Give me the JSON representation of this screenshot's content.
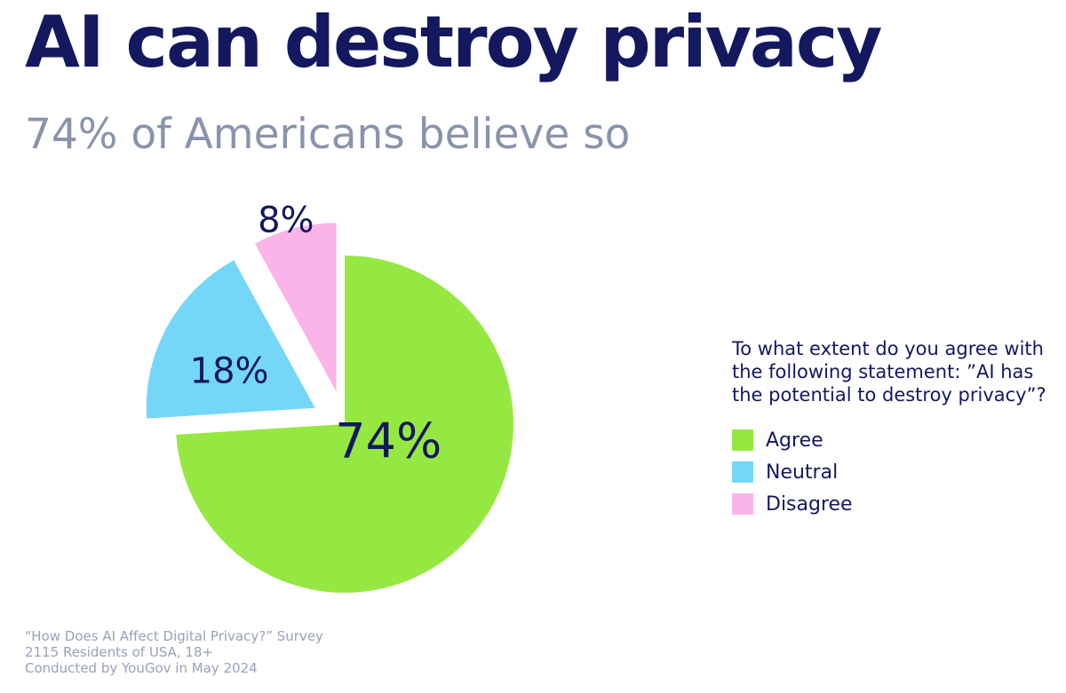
{
  "colors": {
    "navy": "#14185e",
    "gray": "#8a93ab",
    "footer": "#9aa1b8",
    "agree": "#95e841",
    "neutral": "#74d7f7",
    "disagree": "#fbb4ea"
  },
  "chart_data": {
    "type": "pie",
    "title": "AI can destroy privacy",
    "subtitle": "74% of Americans believe so",
    "legend_title": "To what extent do you agree with the following statement: ”AI has the potential to destroy privacy”?",
    "legend_position": "right",
    "slices": [
      {
        "name": "Agree",
        "value": 74,
        "label": "74%",
        "color": "#95e841",
        "exploded": false
      },
      {
        "name": "Neutral",
        "value": 18,
        "label": "18%",
        "color": "#74d7f7",
        "exploded": true
      },
      {
        "name": "Disagree",
        "value": 8,
        "label": "8%",
        "color": "#fbb4ea",
        "exploded": true
      }
    ]
  },
  "footer": {
    "line1": "“How Does AI Affect Digital Privacy?” Survey",
    "line2": "2115 Residents of USA, 18+",
    "line3": "Conducted by YouGov in May 2024"
  }
}
